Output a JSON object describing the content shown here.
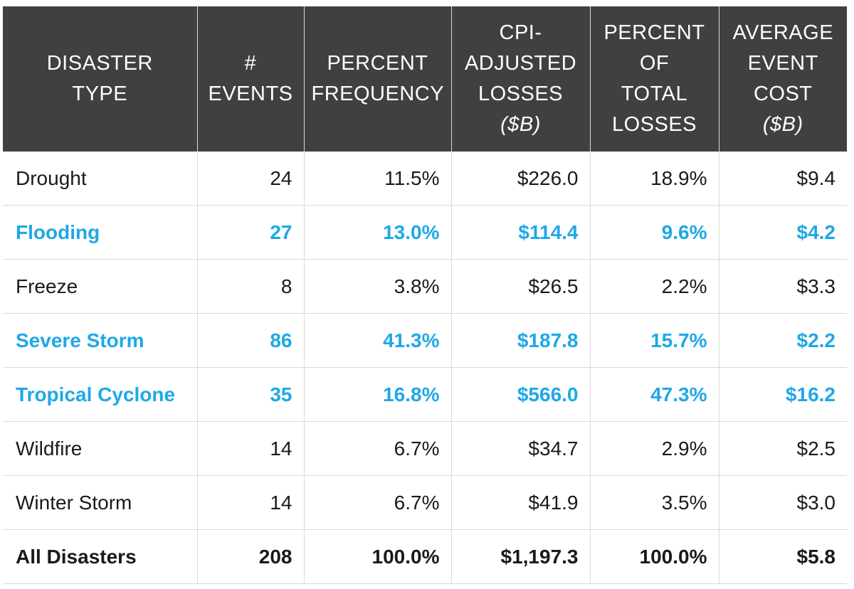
{
  "chart_data": {
    "type": "table",
    "accent_color": "#1ea8e8",
    "header_background": "#404040",
    "headers": [
      [
        "DISASTER",
        "TYPE"
      ],
      [
        "#",
        "EVENTS"
      ],
      [
        "PERCENT",
        "FREQUENCY"
      ],
      [
        "CPI-",
        "ADJUSTED",
        "LOSSES",
        "($B)"
      ],
      [
        "PERCENT",
        "OF",
        "TOTAL",
        "LOSSES"
      ],
      [
        "AVERAGE",
        "EVENT",
        "COST",
        "($B)"
      ]
    ],
    "rows": [
      {
        "cells": [
          "Drought",
          "24",
          "11.5%",
          "$226.0",
          "18.9%",
          "$9.4"
        ],
        "highlighted": false
      },
      {
        "cells": [
          "Flooding",
          "27",
          "13.0%",
          "$114.4",
          "9.6%",
          "$4.2"
        ],
        "highlighted": true
      },
      {
        "cells": [
          "Freeze",
          "8",
          "3.8%",
          "$26.5",
          "2.2%",
          "$3.3"
        ],
        "highlighted": false
      },
      {
        "cells": [
          "Severe Storm",
          "86",
          "41.3%",
          "$187.8",
          "15.7%",
          "$2.2"
        ],
        "highlighted": true
      },
      {
        "cells": [
          "Tropical Cyclone",
          "35",
          "16.8%",
          "$566.0",
          "47.3%",
          "$16.2"
        ],
        "highlighted": true
      },
      {
        "cells": [
          "Wildfire",
          "14",
          "6.7%",
          "$34.7",
          "2.9%",
          "$2.5"
        ],
        "highlighted": false
      },
      {
        "cells": [
          "Winter Storm",
          "14",
          "6.7%",
          "$41.9",
          "3.5%",
          "$3.0"
        ],
        "highlighted": false
      }
    ],
    "total": [
      "All Disasters",
      "208",
      "100.0%",
      "$1,197.3",
      "100.0%",
      "$5.8"
    ]
  }
}
